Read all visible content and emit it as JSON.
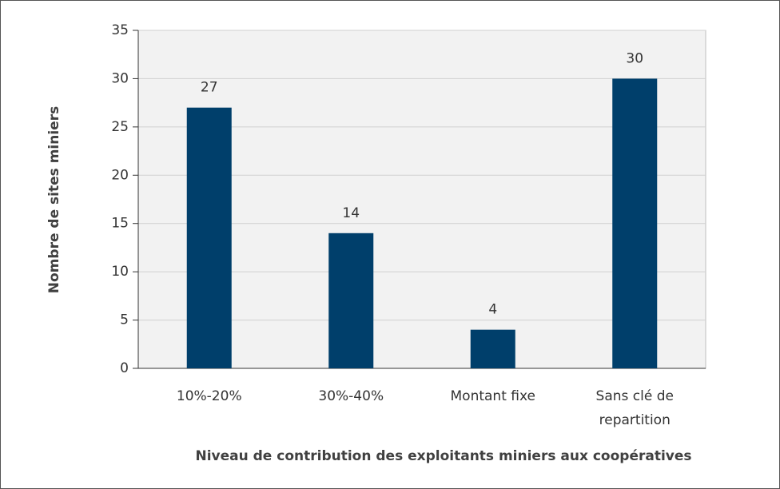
{
  "chart_data": {
    "type": "bar",
    "xlabel": "Niveau de contribution des exploitants miniers aux coopératives",
    "ylabel": "Nombre de sites miniers",
    "categories": [
      "10%-20%",
      "30%-40%",
      "Montant fixe",
      "Sans clé de repartition"
    ],
    "values": [
      27,
      14,
      4,
      30
    ],
    "color": "#003f6b",
    "ylim": [
      0,
      35
    ],
    "yticks": [
      0,
      5,
      10,
      15,
      20,
      25,
      30,
      35
    ],
    "grid": true
  }
}
